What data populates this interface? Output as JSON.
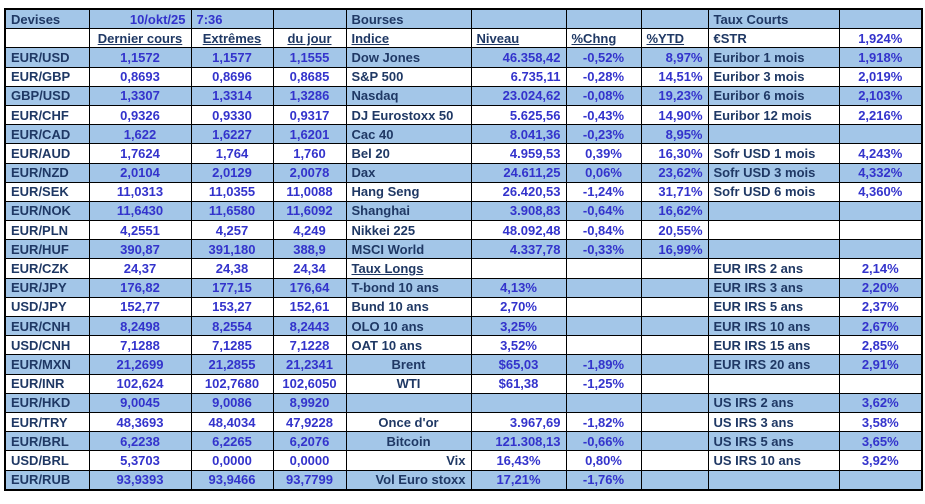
{
  "colors": {
    "band_blue": "#A3C6E8",
    "label_navy": "#1F3864",
    "value_blue": "#3333CC"
  },
  "header": {
    "devises": "Devises",
    "date": "10/okt/25",
    "time": "7:36",
    "bourses": "Bourses",
    "taux_courts": "Taux Courts",
    "cols": {
      "dernier_cours": "Dernier cours",
      "extremes": "Extrêmes",
      "du_jour": "du jour",
      "indice": "Indice",
      "niveau": "Niveau",
      "chng": "%Chng",
      "ytd": "%YTD"
    },
    "estr": {
      "label": "€STR",
      "value": "1,924%"
    }
  },
  "devises": {
    "rows": [
      {
        "pair": "EUR/USD",
        "dernier": "1,1572",
        "extremes": "1,1577",
        "du_jour": "1,1555"
      },
      {
        "pair": "EUR/GBP",
        "dernier": "0,8693",
        "extremes": "0,8696",
        "du_jour": "0,8685"
      },
      {
        "pair": "GBP/USD",
        "dernier": "1,3307",
        "extremes": "1,3314",
        "du_jour": "1,3286"
      },
      {
        "pair": "EUR/CHF",
        "dernier": "0,9326",
        "extremes": "0,9330",
        "du_jour": "0,9317"
      },
      {
        "pair": "EUR/CAD",
        "dernier": "1,622",
        "extremes": "1,6227",
        "du_jour": "1,6201"
      },
      {
        "pair": "EUR/AUD",
        "dernier": "1,7624",
        "extremes": "1,764",
        "du_jour": "1,760"
      },
      {
        "pair": "EUR/NZD",
        "dernier": "2,0104",
        "extremes": "2,0129",
        "du_jour": "2,0078"
      },
      {
        "pair": "EUR/SEK",
        "dernier": "11,0313",
        "extremes": "11,0355",
        "du_jour": "11,0088"
      },
      {
        "pair": "EUR/NOK",
        "dernier": "11,6430",
        "extremes": "11,6580",
        "du_jour": "11,6092"
      },
      {
        "pair": "EUR/PLN",
        "dernier": "4,2551",
        "extremes": "4,257",
        "du_jour": "4,249"
      },
      {
        "pair": "EUR/HUF",
        "dernier": "390,87",
        "extremes": "391,180",
        "du_jour": "388,9"
      },
      {
        "pair": "EUR/CZK",
        "dernier": "24,37",
        "extremes": "24,38",
        "du_jour": "24,34"
      },
      {
        "pair": "EUR/JPY",
        "dernier": "176,82",
        "extremes": "177,15",
        "du_jour": "176,64"
      },
      {
        "pair": "USD/JPY",
        "dernier": "152,77",
        "extremes": "153,27",
        "du_jour": "152,61"
      },
      {
        "pair": "EUR/CNH",
        "dernier": "8,2498",
        "extremes": "8,2554",
        "du_jour": "8,2443"
      },
      {
        "pair": "USD/CNH",
        "dernier": "7,1288",
        "extremes": "7,1285",
        "du_jour": "7,1228"
      },
      {
        "pair": "EUR/MXN",
        "dernier": "21,2699",
        "extremes": "21,2855",
        "du_jour": "21,2341"
      },
      {
        "pair": "EUR/INR",
        "dernier": "102,624",
        "extremes": "102,7680",
        "du_jour": "102,6050"
      },
      {
        "pair": "EUR/HKD",
        "dernier": "9,0045",
        "extremes": "9,0086",
        "du_jour": "8,9920"
      },
      {
        "pair": "EUR/TRY",
        "dernier": "48,3693",
        "extremes": "48,4034",
        "du_jour": "47,9228"
      },
      {
        "pair": "EUR/BRL",
        "dernier": "6,2238",
        "extremes": "6,2265",
        "du_jour": "6,2076"
      },
      {
        "pair": "USD/BRL",
        "dernier": "5,3703",
        "extremes": "0,0000",
        "du_jour": "0,0000"
      },
      {
        "pair": "EUR/RUB",
        "dernier": "93,9393",
        "extremes": "93,9466",
        "du_jour": "93,7799"
      }
    ]
  },
  "bourses": {
    "rows": [
      {
        "label": "Dow Jones",
        "niveau": "46.358,42",
        "chng": "-0,52%",
        "ytd": "8,97%"
      },
      {
        "label": "S&P 500",
        "niveau": "6.735,11",
        "chng": "-0,28%",
        "ytd": "14,51%"
      },
      {
        "label": "Nasdaq",
        "niveau": "23.024,62",
        "chng": "-0,08%",
        "ytd": "19,23%"
      },
      {
        "label": "DJ Eurostoxx 50",
        "niveau": "5.625,56",
        "chng": "-0,43%",
        "ytd": "14,90%"
      },
      {
        "label": "Cac 40",
        "niveau": "8.041,36",
        "chng": "-0,23%",
        "ytd": "8,95%"
      },
      {
        "label": "Bel 20",
        "niveau": "4.959,53",
        "chng": "0,39%",
        "ytd": "16,30%"
      },
      {
        "label": "Dax",
        "niveau": "24.611,25",
        "chng": "0,06%",
        "ytd": "23,62%"
      },
      {
        "label": "Hang Seng",
        "niveau": "26.420,53",
        "chng": "-1,24%",
        "ytd": "31,71%"
      },
      {
        "label": "Shanghai",
        "niveau": "3.908,83",
        "chng": "-0,64%",
        "ytd": "16,62%"
      },
      {
        "label": "Nikkei 225",
        "niveau": "48.092,48",
        "chng": "-0,84%",
        "ytd": "20,55%"
      },
      {
        "label": "MSCI World",
        "niveau": "4.337,78",
        "chng": "-0,33%",
        "ytd": "16,99%"
      },
      {
        "label": "Taux Longs",
        "niveau": "",
        "chng": "",
        "ytd": "",
        "underline": true
      },
      {
        "label": "T-bond 10 ans",
        "niveau": "4,13%",
        "chng": "",
        "ytd": ""
      },
      {
        "label": "Bund 10 ans",
        "niveau": "2,70%",
        "chng": "",
        "ytd": ""
      },
      {
        "label": "OLO 10 ans",
        "niveau": "3,25%",
        "chng": "",
        "ytd": ""
      },
      {
        "label": "OAT 10 ans",
        "niveau": "3,52%",
        "chng": "",
        "ytd": ""
      },
      {
        "label": "Brent",
        "niveau": "$65,03",
        "chng": "-1,89%",
        "ytd": "",
        "align": "center"
      },
      {
        "label": "WTI",
        "niveau": "$61,38",
        "chng": "-1,25%",
        "ytd": "",
        "align": "center"
      },
      {
        "label": "",
        "niveau": "",
        "chng": "",
        "ytd": ""
      },
      {
        "label": "Once d'or",
        "niveau": "3.967,69",
        "chng": "-1,82%",
        "ytd": "",
        "align": "center"
      },
      {
        "label": "Bitcoin",
        "niveau": "121.308,13",
        "chng": "-0,66%",
        "ytd": "",
        "align": "center"
      },
      {
        "label": "Vix",
        "niveau": "16,43%",
        "chng": "0,80%",
        "ytd": "",
        "align": "right"
      },
      {
        "label": "Vol Euro stoxx",
        "niveau": "17,21%",
        "chng": "-1,76%",
        "ytd": "",
        "align": "right"
      }
    ]
  },
  "taux_courts": {
    "rows": [
      {
        "label": "Euribor 1 mois",
        "value": "1,918%"
      },
      {
        "label": "Euribor 3 mois",
        "value": "2,019%"
      },
      {
        "label": "Euribor 6 mois",
        "value": "2,103%"
      },
      {
        "label": "Euribor 12 mois",
        "value": "2,216%"
      },
      {
        "label": "",
        "value": ""
      },
      {
        "label": "Sofr USD 1 mois",
        "value": "4,243%"
      },
      {
        "label": "Sofr USD 3 mois",
        "value": "4,332%"
      },
      {
        "label": "Sofr USD 6 mois",
        "value": "4,360%"
      },
      {
        "label": "",
        "value": ""
      },
      {
        "label": "",
        "value": ""
      },
      {
        "label": "",
        "value": ""
      },
      {
        "label": "EUR IRS 2 ans",
        "value": "2,14%"
      },
      {
        "label": "EUR IRS 3 ans",
        "value": "2,20%"
      },
      {
        "label": "EUR IRS 5 ans",
        "value": "2,37%"
      },
      {
        "label": "EUR IRS 10 ans",
        "value": "2,67%"
      },
      {
        "label": "EUR IRS 15 ans",
        "value": "2,85%"
      },
      {
        "label": "EUR IRS 20 ans",
        "value": "2,91%"
      },
      {
        "label": "",
        "value": ""
      },
      {
        "label": "US IRS 2 ans",
        "value": "3,62%"
      },
      {
        "label": "US IRS 3 ans",
        "value": "3,58%"
      },
      {
        "label": "US IRS 5 ans",
        "value": "3,65%"
      },
      {
        "label": "US IRS 10 ans",
        "value": "3,92%"
      },
      {
        "label": "",
        "value": ""
      }
    ]
  }
}
